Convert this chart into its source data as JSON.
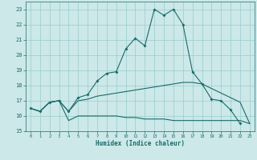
{
  "xlabel": "Humidex (Indice chaleur)",
  "x_values": [
    0,
    1,
    2,
    3,
    4,
    5,
    6,
    7,
    8,
    9,
    10,
    11,
    12,
    13,
    14,
    15,
    16,
    17,
    18,
    19,
    20,
    21,
    22,
    23
  ],
  "line1": [
    16.5,
    16.3,
    16.9,
    17.0,
    16.3,
    17.2,
    17.4,
    18.3,
    18.8,
    18.9,
    20.4,
    21.1,
    20.6,
    23.0,
    22.6,
    23.0,
    22.0,
    18.9,
    18.1,
    17.1,
    17.0,
    16.4,
    15.5,
    null
  ],
  "line2": [
    16.5,
    16.3,
    16.9,
    17.0,
    16.3,
    17.0,
    17.1,
    17.3,
    17.4,
    17.5,
    17.6,
    17.7,
    17.8,
    17.9,
    18.0,
    18.1,
    18.2,
    18.2,
    18.1,
    17.8,
    17.5,
    17.2,
    16.9,
    15.5
  ],
  "line3": [
    16.5,
    16.3,
    16.9,
    17.0,
    15.7,
    16.0,
    16.0,
    16.0,
    16.0,
    16.0,
    15.9,
    15.9,
    15.8,
    15.8,
    15.8,
    15.7,
    15.7,
    15.7,
    15.7,
    15.7,
    15.7,
    15.7,
    15.7,
    15.5
  ],
  "color": "#1a6b6b",
  "bg_color": "#cce8e8",
  "grid_color": "#99cccc",
  "ylim": [
    15,
    23.5
  ],
  "yticks": [
    15,
    16,
    17,
    18,
    19,
    20,
    21,
    22,
    23
  ],
  "xticks": [
    0,
    1,
    2,
    3,
    4,
    5,
    6,
    7,
    8,
    9,
    10,
    11,
    12,
    13,
    14,
    15,
    16,
    17,
    18,
    19,
    20,
    21,
    22,
    23
  ]
}
